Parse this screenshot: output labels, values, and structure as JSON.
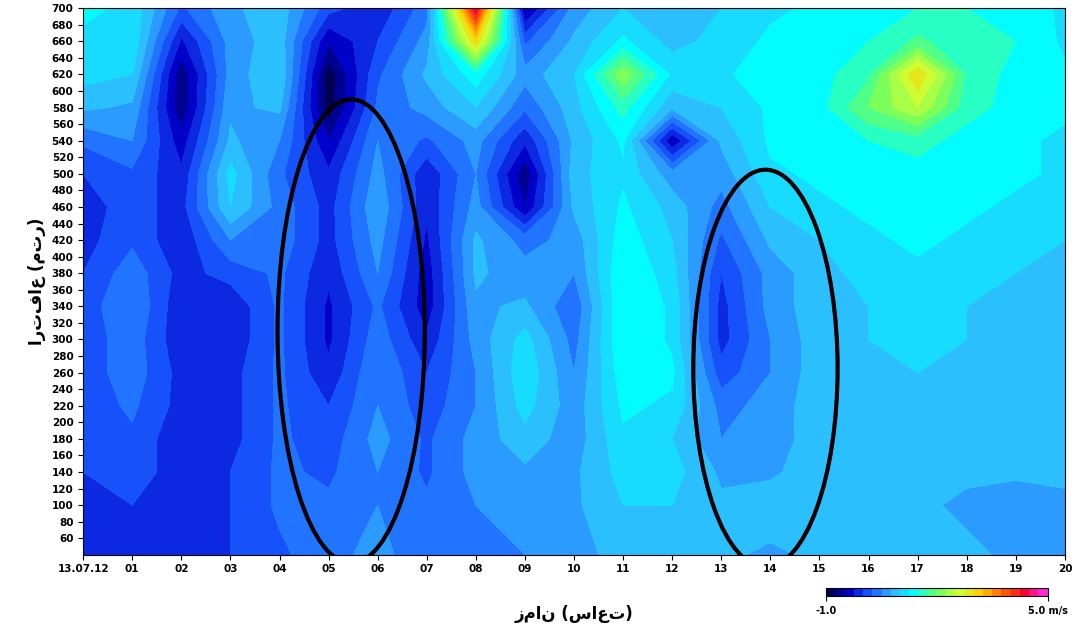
{
  "chart_data": {
    "type": "heatmap",
    "xlabel": "زمان (ساعت)",
    "ylabel": "ارتفاع (متر)",
    "x": [
      0,
      1,
      2,
      3,
      4,
      5,
      6,
      7,
      8,
      9,
      10,
      11,
      12,
      13,
      14,
      15,
      16,
      17,
      18,
      19,
      20
    ],
    "y": [
      40,
      100,
      140,
      180,
      220,
      260,
      300,
      340,
      380,
      420,
      460,
      500,
      540,
      580,
      620,
      660,
      700
    ],
    "cells": [
      [
        0,
        0,
        -0.1,
        0,
        0.2,
        0.4,
        0.6,
        0.3,
        0.4,
        0.5,
        0.6,
        0.9,
        0.9,
        0.8,
        0.7,
        0.8,
        0.9,
        0.8,
        0.8,
        0.7,
        0.7
      ],
      [
        -0.1,
        0,
        -0.1,
        0,
        0.3,
        0.3,
        0.5,
        0.3,
        0.5,
        0.6,
        0.7,
        1.0,
        1.0,
        0.8,
        0.9,
        0.9,
        0.8,
        0.8,
        0.7,
        0.6,
        0.7
      ],
      [
        0,
        0.1,
        -0.1,
        0,
        0.3,
        0.2,
        0.5,
        0.2,
        0.6,
        0.7,
        0.7,
        1.1,
        1.1,
        0.7,
        0.7,
        0.9,
        0.8,
        0.9,
        0.8,
        0.8,
        0.8
      ],
      [
        0,
        0.2,
        -0.2,
        -0.1,
        0.3,
        0.1,
        0.6,
        0.2,
        0.6,
        0.9,
        0.6,
        1.2,
        1.0,
        0.5,
        0.6,
        0.9,
        0.9,
        0.9,
        0.8,
        0.9,
        0.8
      ],
      [
        0.1,
        0.3,
        -0.1,
        -0.1,
        0.3,
        0,
        0.5,
        0.1,
        0.5,
        1.1,
        0.6,
        1.3,
        1.2,
        0.4,
        0.6,
        0.9,
        0.8,
        1.0,
        0.9,
        0.8,
        0.9
      ],
      [
        0.1,
        0.4,
        -0.1,
        -0.1,
        0.3,
        -0.2,
        0.5,
        0,
        0.5,
        1.2,
        0.5,
        1.4,
        1.3,
        0.1,
        0.5,
        0.9,
        0.9,
        1.0,
        1.0,
        0.9,
        0.9
      ],
      [
        0.1,
        0.4,
        -0.2,
        -0.2,
        0.3,
        -0.3,
        0.4,
        -0.2,
        0.6,
        1.1,
        0.4,
        1.5,
        1.2,
        -0.1,
        0.5,
        0.9,
        1.0,
        1.1,
        1.0,
        1.0,
        0.9
      ],
      [
        0.1,
        0.5,
        -0.2,
        -0.2,
        0.3,
        -0.3,
        0.3,
        -0.4,
        0.7,
        0.8,
        0.3,
        1.5,
        1.2,
        -0.1,
        0.6,
        0.9,
        1.0,
        1.1,
        1.0,
        1.0,
        1.0
      ],
      [
        0,
        0.4,
        -0.1,
        0.1,
        0.3,
        -0.2,
        0.5,
        -0.4,
        0.8,
        0.6,
        0.5,
        1.5,
        1.1,
        0,
        0.6,
        0.9,
        1.1,
        1.2,
        1.1,
        1.0,
        1.0
      ],
      [
        -0.1,
        0.2,
        -0.2,
        0.5,
        0.4,
        -0.1,
        0.6,
        -0.3,
        0.8,
        0.4,
        0.6,
        1.4,
        1.0,
        0.2,
        0.8,
        1.0,
        1.2,
        1.3,
        1.2,
        1.1,
        1.0
      ],
      [
        -0.1,
        0.1,
        -0.1,
        1.0,
        0.4,
        -0.1,
        0.7,
        -0.2,
        0.6,
        -0.5,
        0.8,
        1.3,
        0.9,
        0.4,
        1.0,
        1.2,
        1.3,
        1.3,
        1.3,
        1.2,
        1.1
      ],
      [
        0,
        0.2,
        -0.2,
        1.1,
        0.3,
        -0.2,
        0.6,
        -0.2,
        0.5,
        -0.7,
        0.9,
        1.2,
        0.6,
        0.6,
        1.2,
        1.3,
        1.4,
        1.4,
        1.3,
        1.3,
        1.2
      ],
      [
        0.3,
        0.5,
        -0.4,
        0.8,
        0.5,
        -0.5,
        0.5,
        0.2,
        0.6,
        -0.2,
        0.8,
        1.3,
        -0.5,
        0.8,
        1.3,
        1.3,
        1.5,
        1.6,
        1.4,
        1.3,
        1.2
      ],
      [
        0.8,
        0.7,
        -0.7,
        0.7,
        0.8,
        -0.9,
        0.3,
        0.6,
        1.0,
        0.3,
        0.9,
        1.6,
        0.8,
        1.0,
        1.3,
        1.4,
        2.0,
        2.5,
        1.6,
        1.4,
        1.3
      ],
      [
        1.1,
        1.0,
        -0.7,
        0.6,
        1.0,
        -0.9,
        0.2,
        0.8,
        1.4,
        0.6,
        1.0,
        2.2,
        1.2,
        1.2,
        1.4,
        1.4,
        1.7,
        3.0,
        1.7,
        1.4,
        1.3
      ],
      [
        1.2,
        1.2,
        -0.3,
        0.6,
        0.9,
        -0.5,
        0.0,
        0.6,
        3.0,
        0.2,
        0.8,
        1.3,
        0.9,
        1.1,
        1.3,
        1.4,
        1.5,
        1.8,
        1.6,
        1.5,
        1.2
      ],
      [
        1.3,
        1.2,
        0.2,
        0.7,
        0.9,
        0.1,
        -0.2,
        0.4,
        4.5,
        -0.6,
        0.6,
        1.0,
        0.8,
        1.0,
        1.2,
        1.3,
        1.4,
        1.5,
        1.5,
        1.4,
        1.2
      ]
    ],
    "xlim": [
      0,
      20
    ],
    "ylim": [
      40,
      700
    ],
    "xticks": [
      {
        "value": 0,
        "label": "13.07.12"
      },
      {
        "value": 1,
        "label": "01"
      },
      {
        "value": 2,
        "label": "02"
      },
      {
        "value": 3,
        "label": "03"
      },
      {
        "value": 4,
        "label": "04"
      },
      {
        "value": 5,
        "label": "05"
      },
      {
        "value": 6,
        "label": "06"
      },
      {
        "value": 7,
        "label": "07"
      },
      {
        "value": 8,
        "label": "08"
      },
      {
        "value": 9,
        "label": "09"
      },
      10,
      11,
      12,
      13,
      14,
      15,
      16,
      17,
      18,
      19,
      20
    ],
    "yticks": [
      60,
      80,
      100,
      120,
      140,
      160,
      180,
      200,
      220,
      240,
      260,
      280,
      300,
      320,
      340,
      360,
      380,
      400,
      420,
      440,
      460,
      480,
      500,
      520,
      540,
      560,
      580,
      600,
      620,
      640,
      660,
      680,
      700
    ],
    "colorbar": {
      "range": [
        -1,
        5
      ],
      "ticks": [
        {
          "value": -1,
          "label": "-1.0"
        },
        {
          "value": 5,
          "label": "5.0 m/s"
        }
      ]
    },
    "ellipses": [
      {
        "x": 5.46,
        "y": 310,
        "width": 3.0,
        "height": 560
      },
      {
        "x": 13.9,
        "y": 265,
        "width": 2.94,
        "height": 480
      }
    ]
  }
}
